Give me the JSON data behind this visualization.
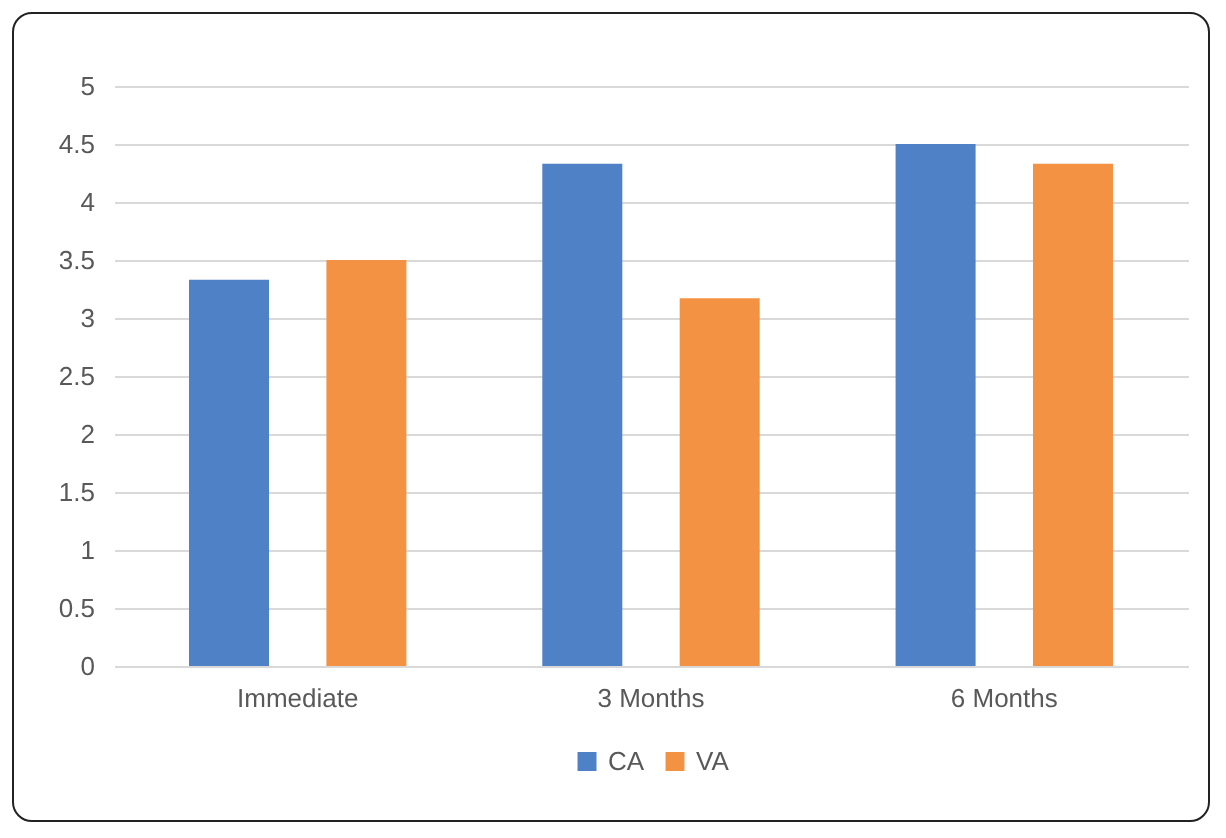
{
  "chart_data": {
    "type": "bar",
    "categories": [
      "Immediate",
      "3 Months",
      "6 Months"
    ],
    "series": [
      {
        "name": "CA",
        "color": "#4f81c7",
        "values": [
          3.33,
          4.33,
          4.5
        ]
      },
      {
        "name": "VA",
        "color": "#f39243",
        "values": [
          3.5,
          3.17,
          4.33
        ]
      }
    ],
    "ylim": [
      0,
      5
    ],
    "yticks": [
      0,
      0.5,
      1,
      1.5,
      2,
      2.5,
      3,
      3.5,
      4,
      4.5,
      5
    ],
    "grid": "y",
    "legend": "bottom"
  }
}
